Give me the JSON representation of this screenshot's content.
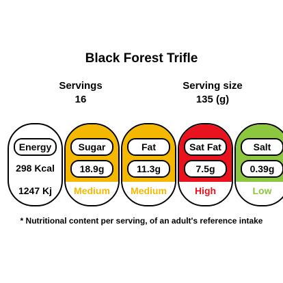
{
  "title": "Black Forest Trifle",
  "servings": {
    "label": "Servings",
    "value": "16"
  },
  "serving_size": {
    "label": "Serving size",
    "value": "135 (g)"
  },
  "energy": {
    "label": "Energy",
    "kcal": "298 Kcal",
    "kj": "1247 Kj"
  },
  "nutrients": [
    {
      "name": "Sugar",
      "value": "18.9g",
      "level": "Medium",
      "color": "#f5b800",
      "level_color": "#f5b800"
    },
    {
      "name": "Fat",
      "value": "11.3g",
      "level": "Medium",
      "color": "#f5b800",
      "level_color": "#f5b800"
    },
    {
      "name": "Sat Fat",
      "value": "7.5g",
      "level": "High",
      "color": "#e8131e",
      "level_color": "#e8131e"
    },
    {
      "name": "Salt",
      "value": "0.39g",
      "level": "Low",
      "color": "#8dc63f",
      "level_color": "#8dc63f"
    }
  ],
  "footnote": "* Nutritional content per serving, of an adult's reference intake"
}
